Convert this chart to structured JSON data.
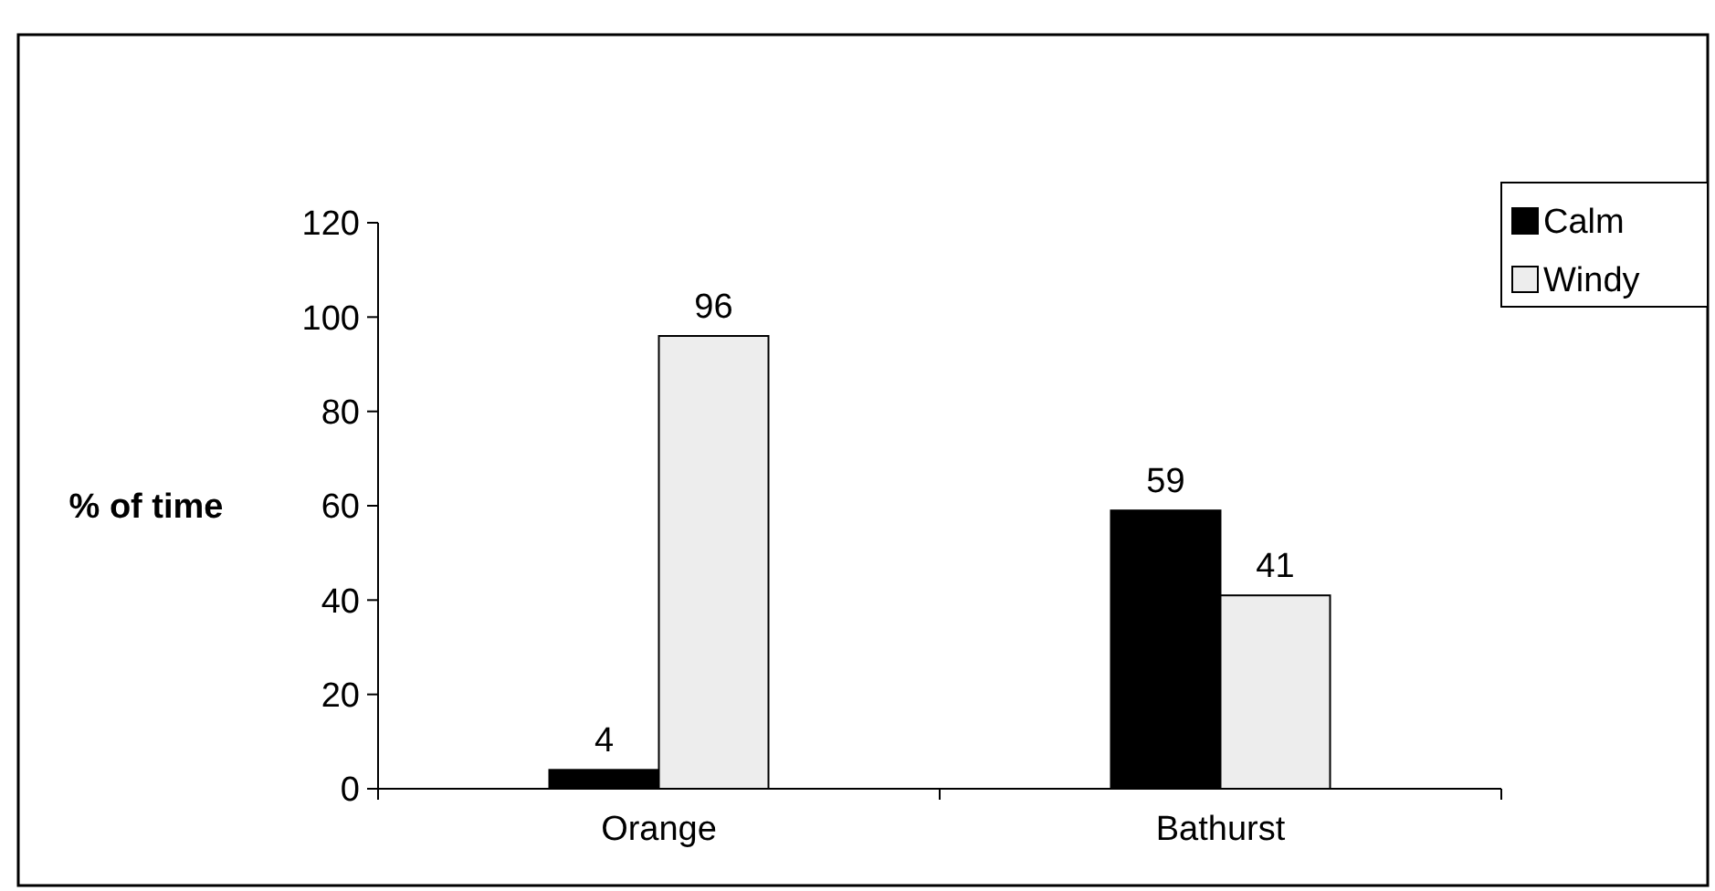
{
  "chart_data": {
    "type": "bar",
    "ylabel": "% of time",
    "categories": [
      "Orange",
      "Bathurst"
    ],
    "series": [
      {
        "name": "Calm",
        "color": "#000000",
        "values": [
          4,
          59
        ]
      },
      {
        "name": "Windy",
        "color": "#ededed",
        "values": [
          96,
          41
        ]
      }
    ],
    "ylim": [
      0,
      120
    ],
    "yticks": [
      0,
      20,
      40,
      60,
      80,
      100,
      120
    ],
    "data_labels": true,
    "legend": "top right",
    "grid": false
  }
}
